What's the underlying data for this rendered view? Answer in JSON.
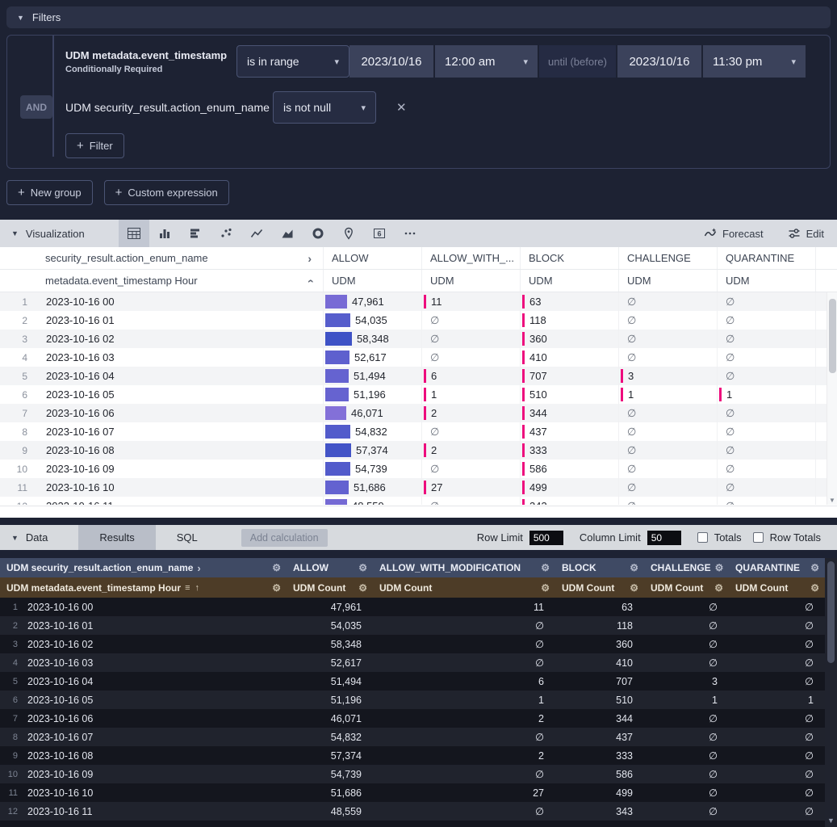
{
  "icons": {
    "triangle_down": "▼",
    "caret_down": "▾",
    "plus": "+",
    "close": "✕",
    "gear": "⚙",
    "chevron_right": "›",
    "sort_menu": "≡",
    "sort_asc": "↑",
    "scroll_down": "▼",
    "null": "∅"
  },
  "colors": {
    "allow_bar_low": "#8370d8",
    "allow_bar_high": "#3e52c6",
    "pink_bar": "#ed0c7d"
  },
  "filters": {
    "header": "Filters",
    "rows": [
      {
        "field": "UDM metadata.event_timestamp",
        "note": "Conditionally Required",
        "operator": "is in range",
        "start_date": "2023/10/16",
        "start_time": "12:00 am",
        "until_label": "until (before)",
        "end_date": "2023/10/16",
        "end_time": "11:30 pm"
      },
      {
        "conjunction": "AND",
        "field": "UDM security_result.action_enum_name",
        "operator": "is not null"
      }
    ],
    "add_filter_label": "Filter",
    "new_group_label": "New group",
    "custom_expression_label": "Custom expression"
  },
  "visualization": {
    "header": "Visualization",
    "toolbar_icons": [
      "table",
      "column-chart",
      "bar-chart",
      "scatter",
      "line-chart",
      "area-chart",
      "donut-chart",
      "map",
      "single-value",
      "more"
    ],
    "selected_icon": "table",
    "forecast_label": "Forecast",
    "edit_label": "Edit"
  },
  "viz_table": {
    "corner_header": "security_result.action_enum_name",
    "row_dimension": "metadata.event_timestamp Hour",
    "measure_label": "UDM",
    "pivot_columns": [
      "ALLOW",
      "ALLOW_WITH_...",
      "BLOCK",
      "CHALLENGE",
      "QUARANTINE"
    ],
    "max_value": 58348,
    "min_allow_value": 46071
  },
  "table_rows": [
    {
      "hour": "2023-10-16 00",
      "values": [
        47961,
        11,
        63,
        null,
        null
      ]
    },
    {
      "hour": "2023-10-16 01",
      "values": [
        54035,
        null,
        118,
        null,
        null
      ]
    },
    {
      "hour": "2023-10-16 02",
      "values": [
        58348,
        null,
        360,
        null,
        null
      ]
    },
    {
      "hour": "2023-10-16 03",
      "values": [
        52617,
        null,
        410,
        null,
        null
      ]
    },
    {
      "hour": "2023-10-16 04",
      "values": [
        51494,
        6,
        707,
        3,
        null
      ]
    },
    {
      "hour": "2023-10-16 05",
      "values": [
        51196,
        1,
        510,
        1,
        1
      ]
    },
    {
      "hour": "2023-10-16 06",
      "values": [
        46071,
        2,
        344,
        null,
        null
      ]
    },
    {
      "hour": "2023-10-16 07",
      "values": [
        54832,
        null,
        437,
        null,
        null
      ]
    },
    {
      "hour": "2023-10-16 08",
      "values": [
        57374,
        2,
        333,
        null,
        null
      ]
    },
    {
      "hour": "2023-10-16 09",
      "values": [
        54739,
        null,
        586,
        null,
        null
      ]
    },
    {
      "hour": "2023-10-16 10",
      "values": [
        51686,
        27,
        499,
        null,
        null
      ]
    },
    {
      "hour": "2023-10-16 11",
      "values": [
        48559,
        null,
        343,
        null,
        null
      ]
    }
  ],
  "data_panel": {
    "header": "Data",
    "tabs": [
      "Results",
      "SQL"
    ],
    "active_tab": "Results",
    "add_calculation_label": "Add calculation",
    "row_limit_label": "Row Limit",
    "row_limit_value": "500",
    "column_limit_label": "Column Limit",
    "column_limit_value": "50",
    "totals_label": "Totals",
    "row_totals_label": "Row Totals"
  },
  "results_table": {
    "pivot_dimension_header": "UDM security_result.action_enum_name",
    "row_dimension": "UDM metadata.event_timestamp Hour",
    "measure_label": "UDM Count",
    "pivot_columns": [
      "ALLOW",
      "ALLOW_WITH_MODIFICATION",
      "BLOCK",
      "CHALLENGE",
      "QUARANTINE"
    ]
  }
}
